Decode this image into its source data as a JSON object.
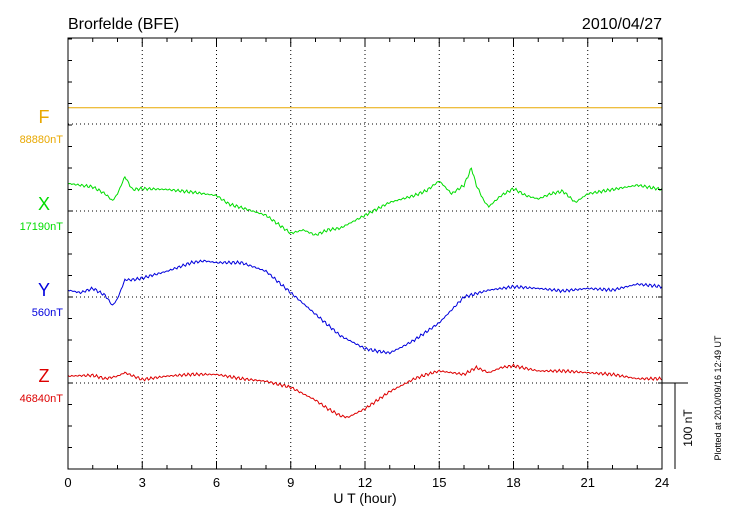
{
  "title": "Brorfelde (BFE)",
  "date": "2010/04/27",
  "footer_note": "Plotted at 2010/09/16 12:49 UT",
  "scale_bar_label": "100 nT",
  "chart_data": {
    "type": "line",
    "xlabel": "U T (hour)",
    "xlim": [
      0,
      24
    ],
    "xticks": [
      "0",
      "3",
      "6",
      "9",
      "12",
      "15",
      "18",
      "21",
      "24"
    ],
    "scale_nT": 100,
    "grid": true,
    "series": [
      {
        "name": "F",
        "baseline_label": "88880nT",
        "color": "#e8a800",
        "x": [
          0,
          3,
          6,
          9,
          12,
          15,
          18,
          21,
          24
        ],
        "offset_nT": [
          19,
          19,
          19,
          19,
          19,
          19,
          19,
          19,
          19
        ]
      },
      {
        "name": "X",
        "baseline_label": "17190nT",
        "color": "#00dd00",
        "x": [
          0,
          0.5,
          1.0,
          1.5,
          1.8,
          2.0,
          2.3,
          2.6,
          3.0,
          4.0,
          5.0,
          6.0,
          6.5,
          7.0,
          8.0,
          9.0,
          9.5,
          10.0,
          10.5,
          11.0,
          12.0,
          13.0,
          14.0,
          14.5,
          15.0,
          15.5,
          16.0,
          16.3,
          16.5,
          16.8,
          17.0,
          17.5,
          18.0,
          18.5,
          19.0,
          19.5,
          20.0,
          20.5,
          21.0,
          22.0,
          23.0,
          24.0
        ],
        "offset_nT": [
          32,
          30,
          28,
          20,
          12,
          20,
          40,
          25,
          26,
          25,
          22,
          18,
          8,
          4,
          -5,
          -26,
          -22,
          -28,
          -22,
          -20,
          -5,
          10,
          18,
          24,
          35,
          20,
          30,
          50,
          30,
          12,
          5,
          18,
          26,
          18,
          14,
          20,
          23,
          10,
          20,
          25,
          30,
          25
        ]
      },
      {
        "name": "Y",
        "baseline_label": "560nT",
        "color": "#0000dd",
        "x": [
          0,
          0.5,
          1.0,
          1.5,
          1.8,
          2.0,
          2.3,
          2.6,
          3.0,
          4.0,
          5.0,
          5.5,
          6.0,
          7.0,
          8.0,
          9.0,
          10.0,
          11.0,
          12.0,
          12.5,
          13.0,
          13.5,
          14.0,
          15.0,
          16.0,
          17.0,
          18.0,
          19.0,
          20.0,
          21.0,
          22.0,
          23.0,
          24.0
        ],
        "offset_nT": [
          8,
          5,
          10,
          2,
          -10,
          -2,
          20,
          20,
          22,
          30,
          40,
          42,
          40,
          40,
          30,
          5,
          -20,
          -45,
          -60,
          -63,
          -65,
          -58,
          -50,
          -30,
          0,
          8,
          12,
          10,
          7,
          10,
          8,
          15,
          12
        ]
      },
      {
        "name": "Z",
        "baseline_label": "46840nT",
        "color": "#dd0000",
        "x": [
          0,
          1.0,
          1.5,
          2.0,
          2.3,
          3.0,
          4.0,
          5.0,
          6.0,
          7.0,
          8.0,
          9.0,
          10.0,
          10.5,
          11.0,
          11.3,
          12.0,
          13.0,
          14.0,
          14.5,
          15.0,
          15.5,
          16.0,
          16.5,
          17.0,
          17.5,
          18.0,
          19.0,
          20.0,
          21.0,
          22.0,
          23.0,
          24.0
        ],
        "offset_nT": [
          8,
          9,
          5,
          8,
          12,
          4,
          8,
          10,
          10,
          5,
          2,
          -5,
          -20,
          -30,
          -38,
          -40,
          -30,
          -10,
          5,
          10,
          14,
          12,
          10,
          18,
          12,
          18,
          20,
          14,
          14,
          12,
          10,
          5,
          5
        ]
      }
    ]
  }
}
